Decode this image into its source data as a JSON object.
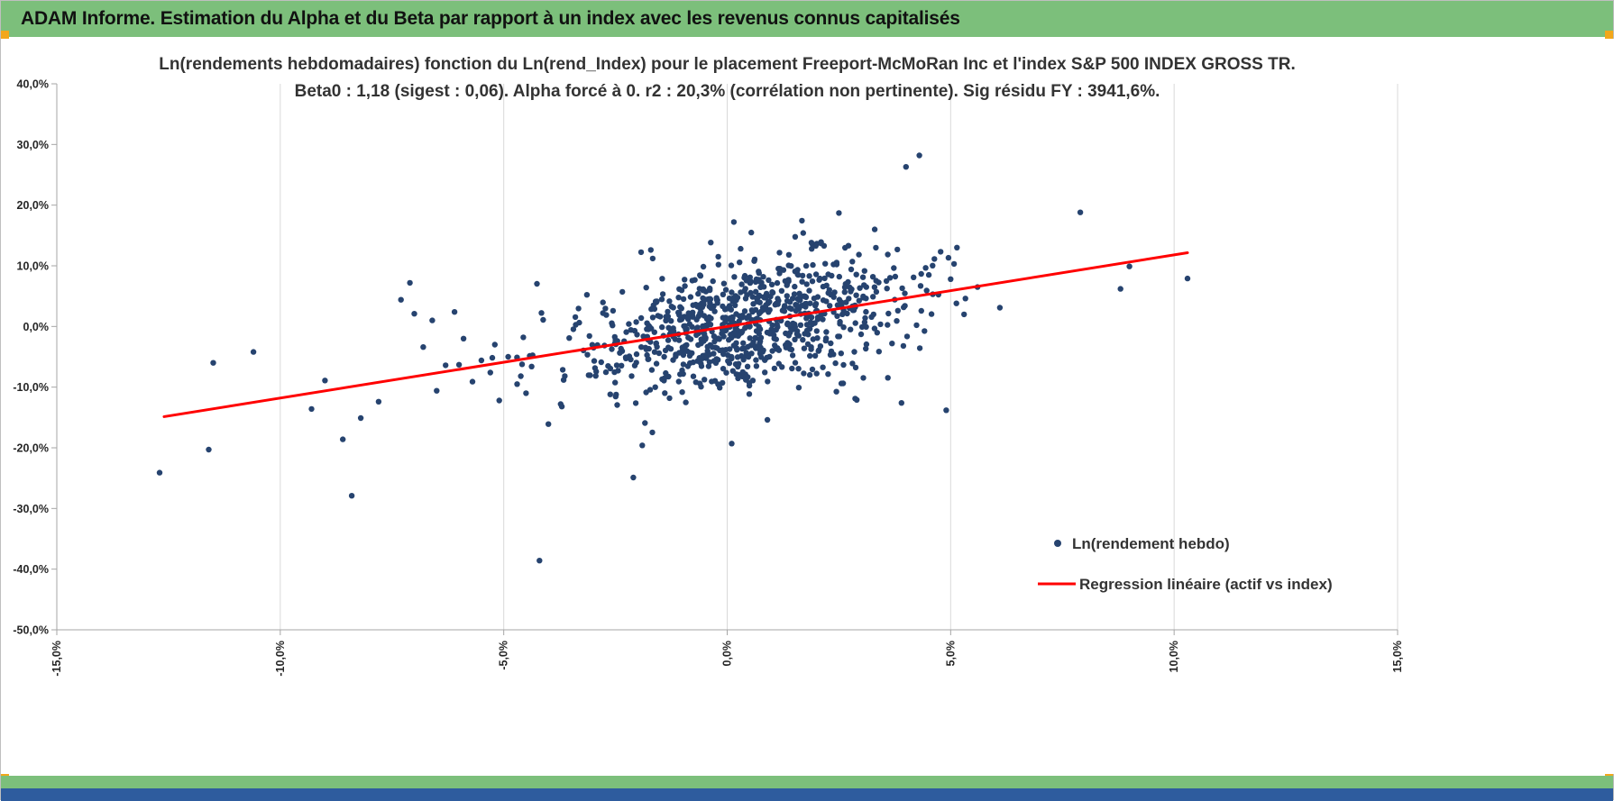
{
  "header": {
    "title": "ADAM Informe. Estimation du Alpha et du Beta par rapport à un index avec les revenus connus capitalisés",
    "bg_color": "#7cbf7b",
    "accent_color": "#f2a71b"
  },
  "footer": {
    "green_color": "#7cbf7b",
    "blue_color": "#2e5c9e"
  },
  "chart_data": {
    "type": "scatter",
    "title_line1": "Ln(rendements hebdomadaires) fonction du Ln(rend_Index) pour le placement Freeport-McMoRan Inc et l'index S&P 500 INDEX GROSS TR.",
    "title_line2": "Beta0 : 1,18 (sigest : 0,06). Alpha forcé à 0. r2 : 20,3% (corrélation non pertinente). Sig résidu FY : 3941,6%.",
    "stats": {
      "beta0": "1,18",
      "sigest": "0,06",
      "alpha": "forcé à 0",
      "r2": "20,3%",
      "sig_residu_fy": "3941,6%"
    },
    "xlim": [
      -15,
      15
    ],
    "ylim": [
      -50,
      40
    ],
    "x_tick_values": [
      -15,
      -10,
      -5,
      0,
      5,
      10,
      15
    ],
    "x_tick_labels": [
      "-15,0%",
      "-10,0%",
      "-5,0%",
      "0,0%",
      "5,0%",
      "10,0%",
      "15,0%"
    ],
    "y_tick_values": [
      40,
      30,
      20,
      10,
      0,
      -10,
      -20,
      -30,
      -40,
      -50
    ],
    "y_tick_labels": [
      "40,0%",
      "30,0%",
      "20,0%",
      "10,0%",
      "0,0%",
      "-10,0%",
      "-20,0%",
      "-30,0%",
      "-40,0%",
      "-50,0%"
    ],
    "grid": "vertical-major",
    "grid_color": "#d9d9d9",
    "axis_color": "#a6a6a6",
    "tick_label_color": "#262626",
    "point_color": "#26436f",
    "point_radius": 3.2,
    "line_color": "#ff0000",
    "regression": {
      "beta": 1.18,
      "alpha": 0,
      "x_start": -12.6,
      "x_end": 10.3
    },
    "legend": [
      {
        "label": "Ln(rendement hebdo)",
        "marker": "dot",
        "color": "#26436f"
      },
      {
        "label": "Regression linéaire (actif vs index)",
        "marker": "line",
        "color": "#ff0000"
      }
    ],
    "points": [
      [
        -12.7,
        -24.1
      ],
      [
        -11.6,
        -20.3
      ],
      [
        -11.5,
        -6.0
      ],
      [
        -10.6,
        -4.2
      ],
      [
        -9.3,
        -13.6
      ],
      [
        -9.0,
        -8.9
      ],
      [
        -8.6,
        -18.6
      ],
      [
        -8.4,
        -27.9
      ],
      [
        -8.2,
        -15.1
      ],
      [
        -7.8,
        -12.4
      ],
      [
        -7.3,
        4.4
      ],
      [
        -7.1,
        7.2
      ],
      [
        -7.0,
        2.1
      ],
      [
        -6.8,
        -3.4
      ],
      [
        -6.6,
        1.0
      ],
      [
        -6.5,
        -10.6
      ],
      [
        -6.3,
        -6.4
      ],
      [
        -6.1,
        2.4
      ],
      [
        -6.0,
        -6.3
      ],
      [
        -5.9,
        -2.0
      ],
      [
        -5.7,
        -9.1
      ],
      [
        -5.5,
        -5.6
      ],
      [
        -5.3,
        -7.6
      ],
      [
        -5.2,
        -3.0
      ],
      [
        -5.1,
        -12.2
      ],
      [
        -4.9,
        -5.0
      ],
      [
        -4.7,
        -9.5
      ],
      [
        -4.5,
        -11.0
      ],
      [
        -4.2,
        -38.6
      ],
      [
        -4.0,
        -16.1
      ],
      [
        -3.7,
        -13.2
      ],
      [
        -2.1,
        -24.9
      ],
      [
        -1.9,
        -19.6
      ],
      [
        0.1,
        -19.3
      ],
      [
        0.9,
        -15.4
      ],
      [
        2.9,
        -12.1
      ],
      [
        3.9,
        -12.6
      ],
      [
        4.9,
        -13.8
      ],
      [
        4.3,
        28.2
      ],
      [
        4.0,
        26.3
      ],
      [
        7.9,
        18.8
      ],
      [
        9.0,
        9.9
      ],
      [
        10.3,
        7.9
      ],
      [
        8.8,
        6.2
      ],
      [
        5.0,
        7.8
      ],
      [
        4.6,
        5.3
      ],
      [
        5.3,
        2.0
      ],
      [
        5.6,
        6.5
      ],
      [
        6.1,
        3.1
      ],
      [
        2.5,
        18.7
      ],
      [
        1.7,
        15.4
      ],
      [
        2.1,
        13.9
      ],
      [
        0.3,
        12.8
      ],
      [
        -0.2,
        11.5
      ],
      [
        3.3,
        16.0
      ]
    ],
    "cluster": {
      "n": 860,
      "seed": 1234567,
      "x_mean": 0.45,
      "x_std": 1.8,
      "resid_std": 5.1
    }
  }
}
